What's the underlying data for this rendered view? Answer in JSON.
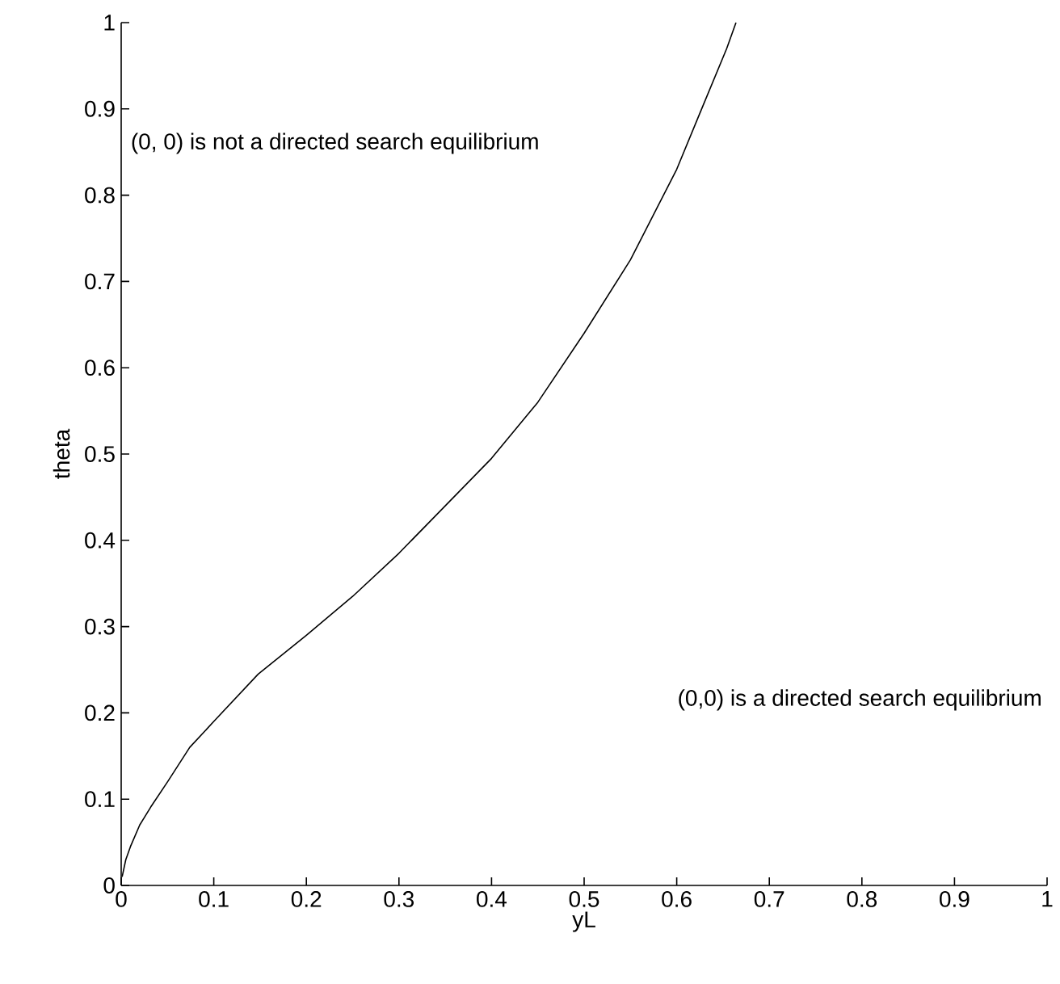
{
  "chart_data": {
    "type": "line",
    "xlabel": "yL",
    "ylabel": "theta",
    "x": [
      0.001,
      0.005,
      0.01,
      0.02,
      0.032,
      0.05,
      0.074,
      0.1,
      0.148,
      0.2,
      0.25,
      0.3,
      0.35,
      0.4,
      0.45,
      0.5,
      0.55,
      0.6,
      0.625,
      0.654,
      0.664
    ],
    "series": [
      {
        "color": "#000000",
        "values": [
          0.01,
          0.03,
          0.045,
          0.07,
          0.091,
          0.12,
          0.16,
          0.19,
          0.245,
          0.29,
          0.335,
          0.385,
          0.44,
          0.495,
          0.56,
          0.64,
          0.725,
          0.83,
          0.895,
          0.97,
          1.0
        ]
      }
    ],
    "xlim": [
      0,
      1
    ],
    "ylim": [
      0,
      1
    ],
    "xticks": [
      0,
      0.1,
      0.2,
      0.3,
      0.4,
      0.5,
      0.6,
      0.7,
      0.8,
      0.9,
      1
    ],
    "yticks": [
      0,
      0.1,
      0.2,
      0.3,
      0.4,
      0.5,
      0.6,
      0.7,
      0.8,
      0.9,
      1
    ],
    "annotations": [
      "(0, 0) is not a directed search equilibrium",
      "(0,0) is a directed search equilibrium"
    ],
    "marker": "none",
    "line_style": "solid"
  }
}
